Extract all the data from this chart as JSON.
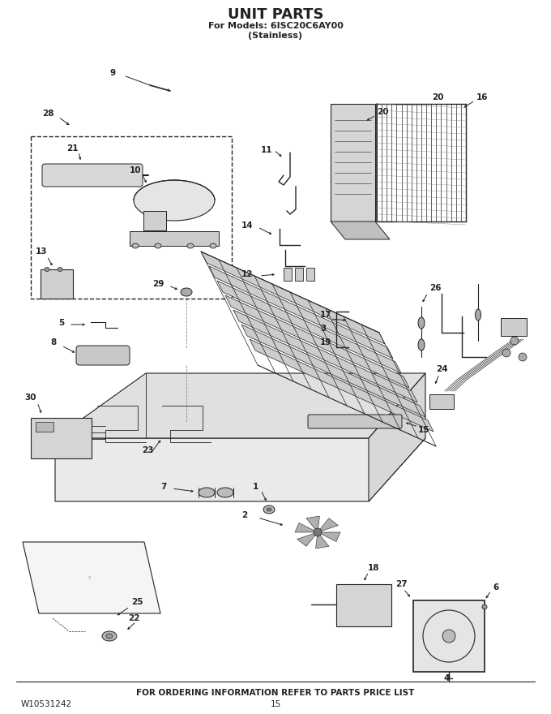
{
  "title": "UNIT PARTS",
  "subtitle1": "For Models: 6ISC20C6AY00",
  "subtitle2": "(Stainless)",
  "footer_text": "FOR ORDERING INFORMATION REFER TO PARTS PRICE LIST",
  "part_number": "W10531242",
  "page_number": "15",
  "bg_color": "#ffffff",
  "line_color": "#222222",
  "figsize": [
    6.8,
    8.8
  ],
  "dpi": 100
}
